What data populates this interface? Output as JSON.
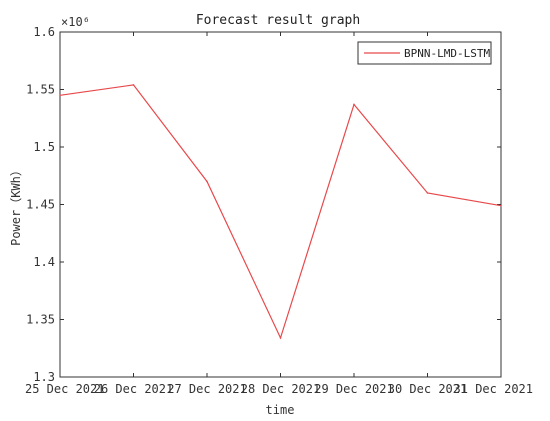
{
  "chart_data": {
    "type": "line",
    "title": "Forecast result graph",
    "xlabel": "time",
    "ylabel": "Power（KWh）",
    "y_exponent_label": "×10⁶",
    "categories": [
      "25 Dec 2021",
      "26 Dec 2021",
      "27 Dec 2021",
      "28 Dec 2021",
      "29 Dec 2021",
      "30 Dec 2021",
      "31 Dec 2021"
    ],
    "x_tick_labels": [
      "25 Dec 2021",
      "26 Dec 2021",
      "27 Dec 2021",
      "28 Dec 2021",
      "29 Dec 2021",
      "30 Dec 2021",
      "31 Dec 2021"
    ],
    "ylim": [
      1.3,
      1.6
    ],
    "yticks": [
      1.3,
      1.35,
      1.4,
      1.45,
      1.5,
      1.55,
      1.6
    ],
    "y_tick_labels": [
      "1.3",
      "1.35",
      "1.4",
      "1.45",
      "1.5",
      "1.55",
      "1.6"
    ],
    "series": [
      {
        "name": "BPNN-LMD-LSTM",
        "color": "#e8494b",
        "values": [
          1.545,
          1.554,
          1.47,
          1.334,
          1.537,
          1.46,
          1.449
        ]
      }
    ],
    "legend_position": "top-right",
    "grid": false
  }
}
